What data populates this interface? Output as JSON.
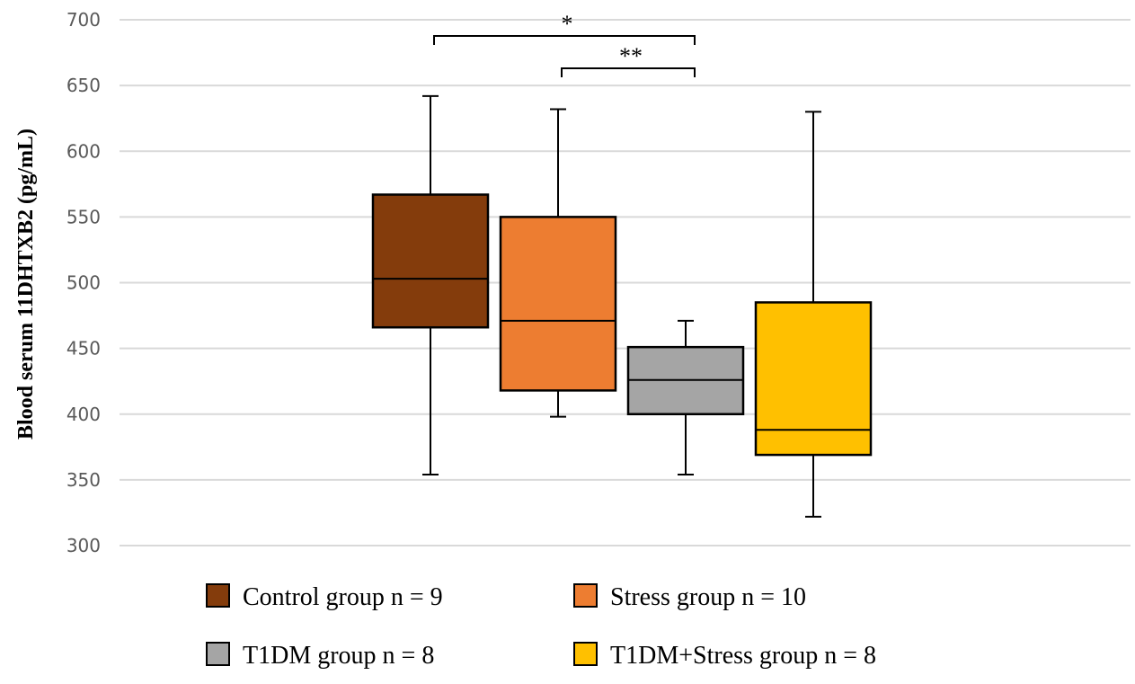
{
  "chart_data": {
    "type": "box",
    "title": "",
    "xlabel": "",
    "ylabel": "Blood serum 11DHTXB2 (pg/mL)",
    "ylim": [
      300,
      700
    ],
    "yticks": [
      300,
      350,
      400,
      450,
      500,
      550,
      600,
      650,
      700
    ],
    "grid": true,
    "legend_position": "bottom",
    "series": [
      {
        "name": "Control group n = 9",
        "color": "#843C0C",
        "min": 354,
        "q1": 466,
        "median": 503,
        "q3": 567,
        "max": 642
      },
      {
        "name": "Stress group n = 10",
        "color": "#ED7D31",
        "min": 398,
        "q1": 418,
        "median": 471,
        "q3": 550,
        "max": 632
      },
      {
        "name": "T1DM group n = 8",
        "color": "#A5A5A5",
        "min": 354,
        "q1": 400,
        "median": 426,
        "q3": 451,
        "max": 471
      },
      {
        "name": "T1DM+Stress group n = 8",
        "color": "#FFC000",
        "min": 322,
        "q1": 369,
        "median": 388,
        "q3": 485,
        "max": 630
      }
    ],
    "significance": [
      {
        "from": 0,
        "to": 2,
        "label": "*"
      },
      {
        "from": 1,
        "to": 2,
        "label": "**"
      }
    ]
  }
}
